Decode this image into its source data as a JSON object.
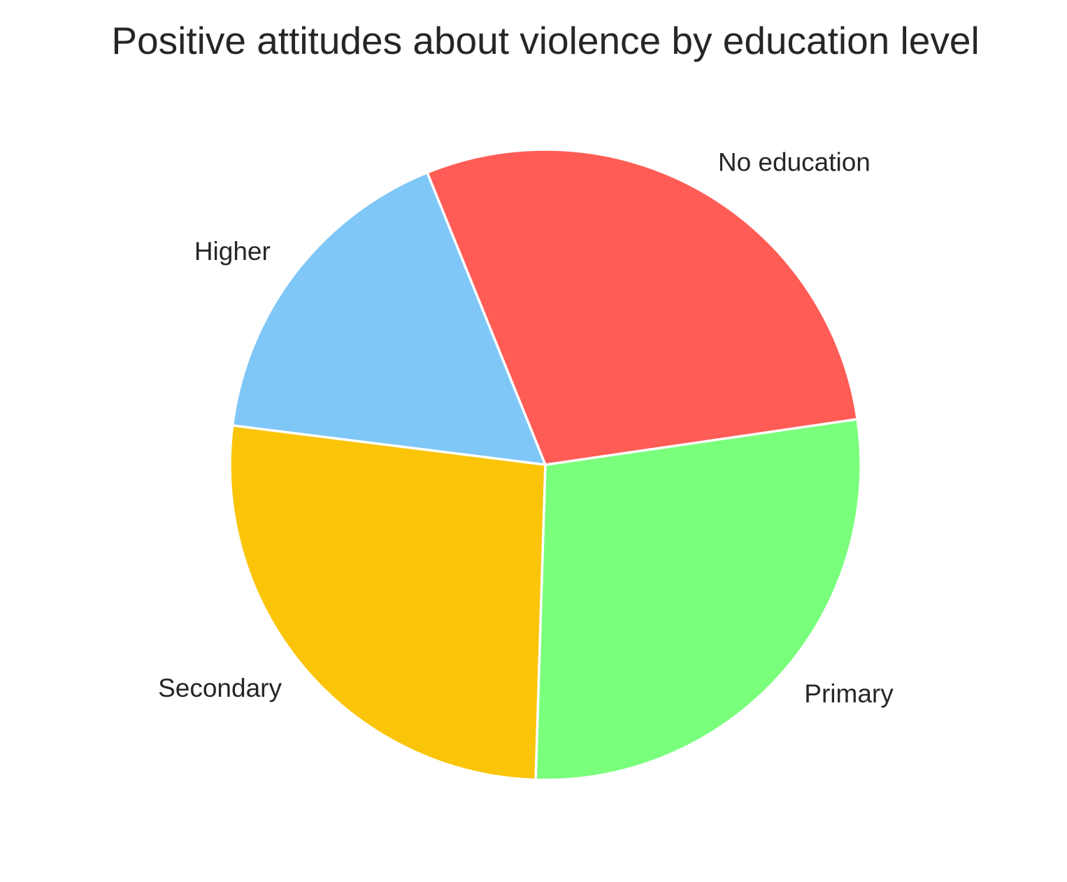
{
  "chart_data": {
    "type": "pie",
    "title": "Positive attitudes about violence by education level",
    "categories": [
      "Higher",
      "Secondary",
      "Primary",
      "No education"
    ],
    "values": [
      16.9,
      26.5,
      27.8,
      28.8
    ],
    "colors": [
      "#7fc7f7",
      "#fac409",
      "#79ff7b",
      "#ff5c56"
    ],
    "legend": "none"
  }
}
